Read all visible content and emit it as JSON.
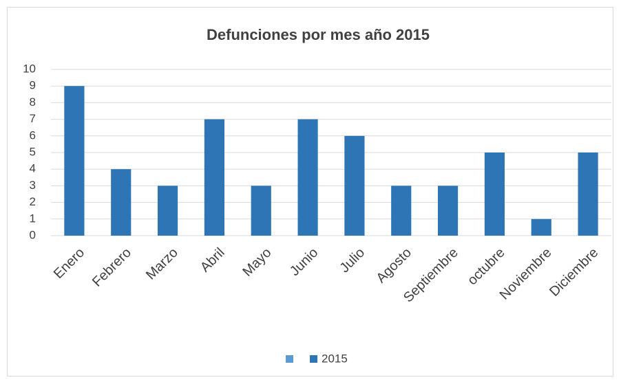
{
  "chart_data": {
    "type": "bar",
    "title": "Defunciones por mes año 2015",
    "categories": [
      "Enero",
      "Febrero",
      "Marzo",
      "Abril",
      "Mayo",
      "Junio",
      "Julio",
      "Agosto",
      "Septiembre",
      "octubre",
      "Noviembre",
      "Diciembre"
    ],
    "series": [
      {
        "name": "2015",
        "color": "#2e75b6",
        "values": [
          9,
          4,
          3,
          7,
          3,
          7,
          6,
          3,
          3,
          5,
          1,
          5
        ]
      }
    ],
    "ylim": [
      0,
      10
    ],
    "yticks": [
      0,
      1,
      2,
      3,
      4,
      5,
      6,
      7,
      8,
      9,
      10
    ],
    "grid": true,
    "legend": "bottom"
  }
}
